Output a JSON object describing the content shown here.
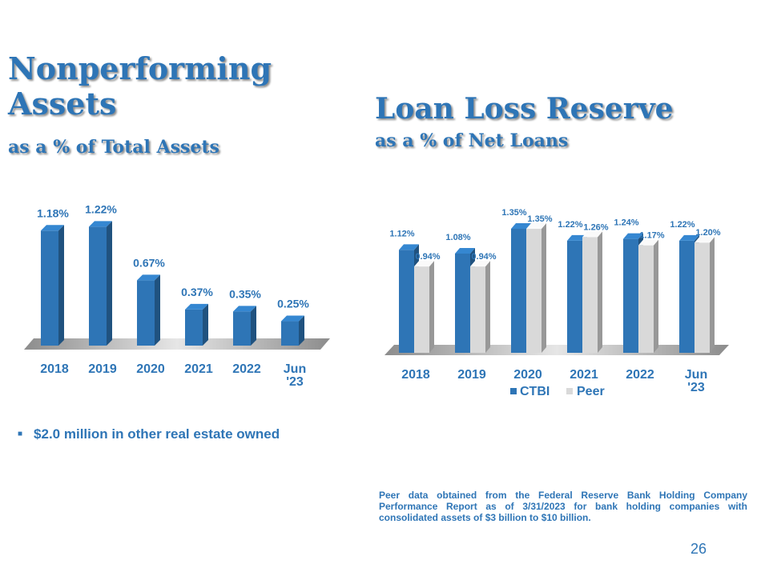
{
  "npa": {
    "title": "Nonperforming Assets",
    "subtitle": "as a % of Total Assets",
    "bullet": "$2.0 million in other real estate owned"
  },
  "llr": {
    "title": "Loan Loss Reserve",
    "subtitle": "as a % of Net Loans",
    "footnote": "Peer data obtained from the Federal Reserve Bank Holding Company Performance Report as of 3/31/2023 for bank holding companies with consolidated assets of $3 billion to $10 billion."
  },
  "page_number": "26",
  "colors": {
    "ctbi": "#2e75b6",
    "peer": "#d9d9d9",
    "text": "#2e75b6",
    "floor": "#bfbfbf"
  },
  "chart_data": [
    {
      "type": "bar",
      "title": "Nonperforming Assets as a % of Total Assets",
      "categories": [
        "2018",
        "2019",
        "2020",
        "2021",
        "2022",
        "Jun '23"
      ],
      "series": [
        {
          "values": [
            1.18,
            1.22,
            0.67,
            0.37,
            0.35,
            0.25
          ],
          "labels": [
            "1.18%",
            "1.22%",
            "0.67%",
            "0.37%",
            "0.35%",
            "0.25%"
          ]
        }
      ],
      "ylim": [
        0,
        1.3
      ],
      "grid": false,
      "style": "3d-column"
    },
    {
      "type": "bar",
      "title": "Loan Loss Reserve as a % of Net Loans",
      "categories": [
        "2018",
        "2019",
        "2020",
        "2021",
        "2022",
        "Jun '23"
      ],
      "series": [
        {
          "name": "CTBI",
          "values": [
            1.12,
            1.08,
            1.35,
            1.22,
            1.24,
            1.22
          ],
          "labels": [
            "1.12%",
            "1.08%",
            "1.35%",
            "1.22%",
            "1.24%",
            "1.22%"
          ]
        },
        {
          "name": "Peer",
          "values": [
            0.94,
            0.94,
            1.35,
            1.26,
            1.17,
            1.2
          ],
          "labels": [
            "0.94%",
            "0.94%",
            "1.35%",
            "1.26%",
            "1.17%",
            "1.20%"
          ]
        }
      ],
      "ylim": [
        0,
        1.42
      ],
      "grid": false,
      "legend": "bottom",
      "style": "3d-column"
    }
  ]
}
